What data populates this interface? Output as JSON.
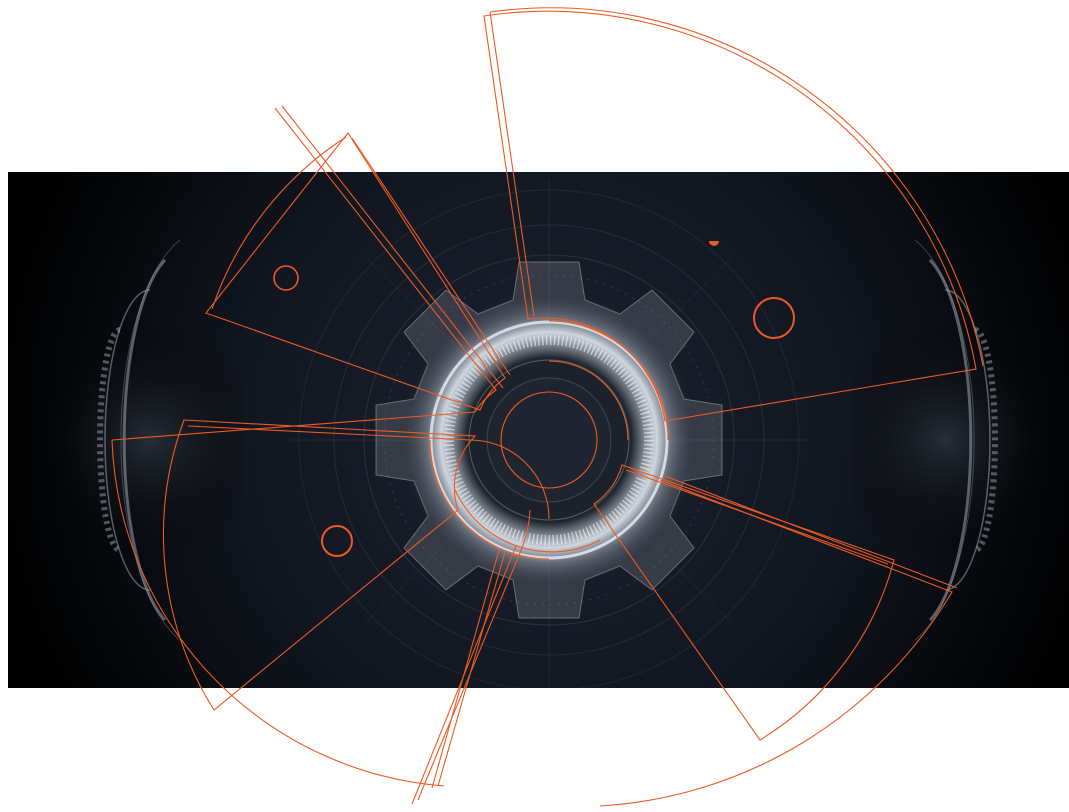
{
  "colors": {
    "page_background": "#ffffff",
    "panel_background": "#0d1117",
    "panel_edge": "#000000",
    "accent_stroke": "#ec5a24",
    "glow": "#eef3f8",
    "hud_lines": "#8c96a3"
  },
  "artwork": {
    "subject": "gear-hud-illustration"
  }
}
